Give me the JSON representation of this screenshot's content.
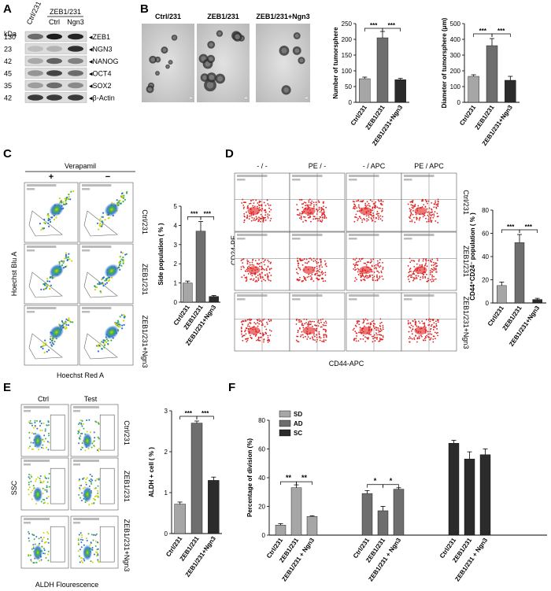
{
  "panel_letters": [
    "A",
    "B",
    "C",
    "D",
    "E",
    "F"
  ],
  "panelA": {
    "kda_label": "kDa",
    "group_label": "ZEB1/231",
    "lanes": [
      "Ctrl/231",
      "Ctrl",
      "Ngn3"
    ],
    "bands": [
      {
        "kda": "130",
        "name": "ZEB1"
      },
      {
        "kda": "23",
        "name": "NGN3"
      },
      {
        "kda": "42",
        "name": "NANOG"
      },
      {
        "kda": "45",
        "name": "OCT4"
      },
      {
        "kda": "35",
        "name": "SOX2"
      },
      {
        "kda": "42",
        "name": "β-Actin"
      }
    ]
  },
  "panelB": {
    "image_titles": [
      "Ctrl/231",
      "ZEB1/231",
      "ZEB1/231+Ngn3"
    ]
  },
  "panelC": {
    "treatment_label": "Verapamil",
    "col_signs": [
      "+",
      "−"
    ],
    "row_labels": [
      "Ctrl/231",
      "ZEB1/231",
      "ZEB1/231+Ngn3"
    ],
    "y_axis": "Hoechst Blu A",
    "x_axis": "Hoechst Red A"
  },
  "panelD": {
    "col_labels": [
      "- / -",
      "PE / -",
      "- / APC",
      "PE / APC"
    ],
    "row_labels": [
      "Ctrl/231",
      "ZEB1/231",
      "ZEB1/231+Ngn3"
    ],
    "y_axis": "CD24-PE",
    "x_axis": "CD44-APC"
  },
  "panelE": {
    "col_labels": [
      "Ctrl",
      "Test"
    ],
    "row_labels": [
      "Ctrl/231",
      "ZEB1/231",
      "ZEB1/231+Ngn3"
    ],
    "y_axis": "SSC",
    "x_axis": "ALDH Flourescence"
  },
  "colors": {
    "light": "#a6a6a6",
    "mid": "#6e6e6e",
    "dark": "#2b2b2b"
  },
  "chart_data": [
    {
      "id": "B1",
      "type": "bar",
      "categories": [
        "Ctrl/231",
        "ZEB1/231",
        "ZEB1/231+Ngn3"
      ],
      "values": [
        75,
        205,
        72
      ],
      "errors": [
        5,
        20,
        4
      ],
      "ylabel": "Number of tumorsphere",
      "ylim": [
        0,
        250
      ],
      "yticks": [
        "0",
        "50",
        "100",
        "150",
        "200",
        "250"
      ],
      "significance": [
        "***",
        "***"
      ]
    },
    {
      "id": "B2",
      "type": "bar",
      "categories": [
        "Ctrl/231",
        "ZEB1/231",
        "ZEB1/231+Ngn3"
      ],
      "values": [
        165,
        360,
        140
      ],
      "errors": [
        10,
        45,
        25
      ],
      "ylabel": "Diameter of tumorsphere (μm)",
      "ylim": [
        0,
        500
      ],
      "yticks": [
        "0",
        "100",
        "200",
        "300",
        "400",
        "500"
      ],
      "significance": [
        "***",
        "***"
      ]
    },
    {
      "id": "C",
      "type": "bar",
      "categories": [
        "Ctrl/231",
        "ZEB1/231",
        "ZEB1/231+Ngn3"
      ],
      "values": [
        1.0,
        3.7,
        0.3
      ],
      "errors": [
        0.1,
        0.5,
        0.05
      ],
      "ylabel": "Side population ( % )",
      "ylim": [
        0,
        5
      ],
      "yticks": [
        "0",
        "1",
        "2",
        "3",
        "4",
        "5"
      ],
      "significance": [
        "***",
        "***"
      ]
    },
    {
      "id": "D",
      "type": "bar",
      "categories": [
        "Ctrl/231",
        "ZEB1/231",
        "ZEB1/231+Ngn3"
      ],
      "values": [
        15,
        52,
        3
      ],
      "errors": [
        3,
        7,
        1
      ],
      "ylabel": "CD44⁺CD24⁻ population ( % )",
      "ylim": [
        0,
        80
      ],
      "yticks": [
        "0",
        "20",
        "40",
        "60",
        "80"
      ],
      "significance": [
        "***",
        "***"
      ]
    },
    {
      "id": "E",
      "type": "bar",
      "categories": [
        "Ctrl/231",
        "ZEB1/231",
        "ZEB1/231+Ngn3"
      ],
      "values": [
        0.72,
        2.7,
        1.3
      ],
      "errors": [
        0.05,
        0.05,
        0.08
      ],
      "ylabel": "ALDH + cell ( % )",
      "ylim": [
        0,
        3
      ],
      "yticks": [
        "0",
        "1",
        "2",
        "3"
      ],
      "significance": [
        "***",
        "***"
      ]
    },
    {
      "id": "F",
      "type": "bar",
      "group_labels": [
        "Ctrl/231",
        "ZEB1/231",
        "ZEB1/231 + Ngn3"
      ],
      "series": [
        {
          "name": "SD",
          "values": [
            7,
            33,
            13
          ],
          "errors": [
            1,
            2,
            0.5
          ]
        },
        {
          "name": "AD",
          "values": [
            29,
            17,
            32
          ],
          "errors": [
            2,
            3,
            1
          ]
        },
        {
          "name": "SC",
          "values": [
            64,
            53,
            56
          ],
          "errors": [
            2,
            5,
            4
          ]
        }
      ],
      "ylabel": "Percentage of division (%)",
      "ylim": [
        0,
        80
      ],
      "yticks": [
        "0",
        "20",
        "40",
        "60",
        "80"
      ],
      "significance": [
        [
          "**",
          "**"
        ],
        [
          "*",
          "*"
        ]
      ],
      "legend": "top-left"
    }
  ]
}
